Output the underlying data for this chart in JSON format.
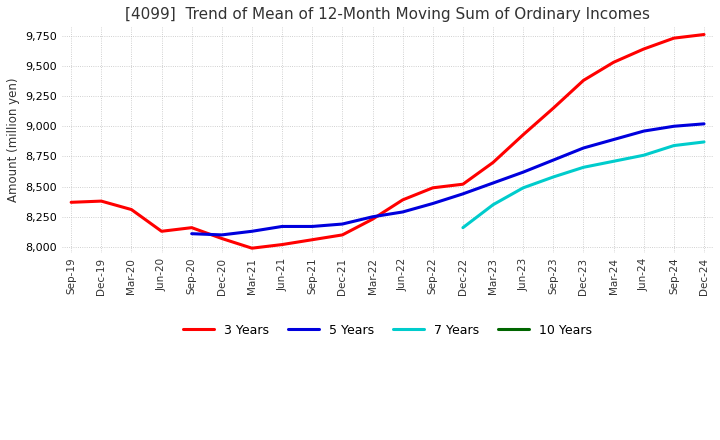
{
  "title": "[4099]  Trend of Mean of 12-Month Moving Sum of Ordinary Incomes",
  "ylabel": "Amount (million yen)",
  "ylim": [
    7950,
    9820
  ],
  "yticks": [
    8000,
    8250,
    8500,
    8750,
    9000,
    9250,
    9500,
    9750
  ],
  "x_labels": [
    "Sep-19",
    "Dec-19",
    "Mar-20",
    "Jun-20",
    "Sep-20",
    "Dec-20",
    "Mar-21",
    "Jun-21",
    "Sep-21",
    "Dec-21",
    "Mar-22",
    "Jun-22",
    "Sep-22",
    "Dec-22",
    "Mar-23",
    "Jun-23",
    "Sep-23",
    "Dec-23",
    "Mar-24",
    "Jun-24",
    "Sep-24",
    "Dec-24"
  ],
  "series": {
    "3 Years": {
      "color": "#ff0000",
      "data": [
        8370,
        8380,
        8310,
        8130,
        8160,
        8070,
        7990,
        8020,
        8060,
        8100,
        8230,
        8390,
        8490,
        8520,
        8700,
        8930,
        9150,
        9380,
        9530,
        9640,
        9730,
        9760
      ]
    },
    "5 Years": {
      "color": "#0000dd",
      "data": [
        null,
        null,
        null,
        null,
        8110,
        8100,
        8130,
        8170,
        8170,
        8190,
        8250,
        8290,
        8360,
        8440,
        8530,
        8620,
        8720,
        8820,
        8890,
        8960,
        9000,
        9020
      ]
    },
    "7 Years": {
      "color": "#00cccc",
      "data": [
        null,
        null,
        null,
        null,
        null,
        null,
        null,
        null,
        null,
        null,
        null,
        null,
        null,
        8160,
        8350,
        8490,
        8580,
        8660,
        8710,
        8760,
        8840,
        8870
      ]
    },
    "10 Years": {
      "color": "#006600",
      "data": [
        null,
        null,
        null,
        null,
        null,
        null,
        null,
        null,
        null,
        null,
        null,
        null,
        null,
        null,
        null,
        null,
        null,
        null,
        null,
        null,
        null,
        null
      ]
    }
  },
  "background_color": "#ffffff",
  "grid_color": "#bbbbbb",
  "title_fontsize": 11,
  "legend_entries": [
    "3 Years",
    "5 Years",
    "7 Years",
    "10 Years"
  ]
}
